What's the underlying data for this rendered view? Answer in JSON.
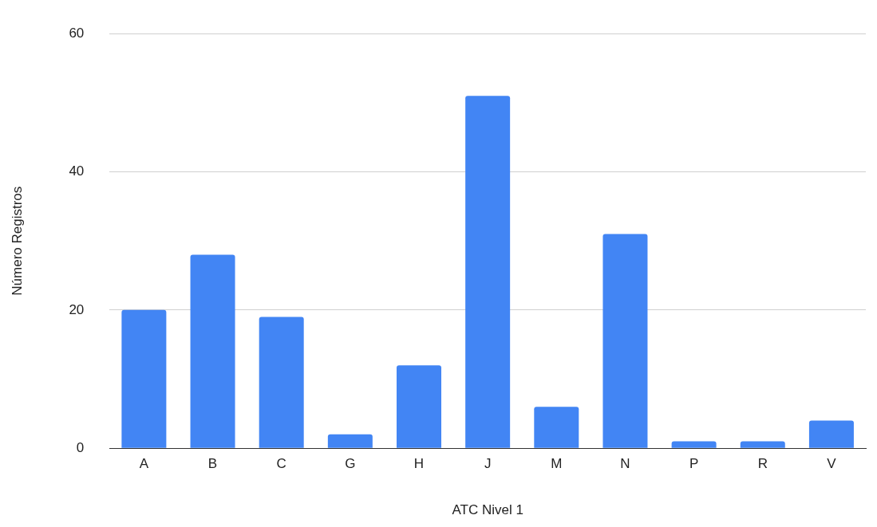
{
  "chart_data": {
    "type": "bar",
    "xlabel": "ATC Nivel 1",
    "ylabel": "Número Registros",
    "categories": [
      "A",
      "B",
      "C",
      "G",
      "H",
      "J",
      "M",
      "N",
      "P",
      "R",
      "V"
    ],
    "values": [
      20,
      28,
      19,
      2,
      12,
      51,
      6,
      31,
      1,
      1,
      4
    ],
    "color": "#4285f4",
    "ylim": [
      0,
      60
    ],
    "yticks": [
      0,
      20,
      40,
      60
    ],
    "grid": "y",
    "legend": false
  }
}
